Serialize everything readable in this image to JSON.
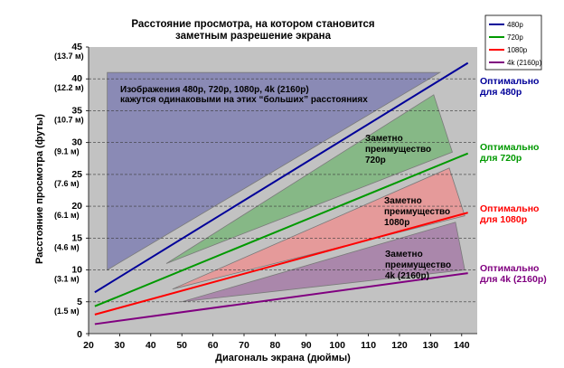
{
  "chart_data": {
    "type": "line",
    "title": [
      "Расстояние просмотра, на котором становится",
      "заметным разрешение экрана"
    ],
    "xlabel": "Диагональ экрана (дюймы)",
    "ylabel": "Расстояние просмотра (футы)",
    "xlim": [
      20,
      145
    ],
    "ylim": [
      0,
      45
    ],
    "xticks": [
      20,
      30,
      40,
      50,
      60,
      70,
      80,
      90,
      100,
      110,
      120,
      130,
      140
    ],
    "yticks": [
      {
        "v": 0,
        "ft": "0",
        "m": ""
      },
      {
        "v": 5,
        "ft": "5",
        "m": "(1.5 м)"
      },
      {
        "v": 10,
        "ft": "10",
        "m": "(3.1 м)"
      },
      {
        "v": 15,
        "ft": "15",
        "m": "(4.6 м)"
      },
      {
        "v": 20,
        "ft": "20",
        "m": "(6.1 м)"
      },
      {
        "v": 25,
        "ft": "25",
        "m": "(7.6 м)"
      },
      {
        "v": 30,
        "ft": "30",
        "m": "(9.1 м)"
      },
      {
        "v": 35,
        "ft": "35",
        "m": "(10.7 м)"
      },
      {
        "v": 40,
        "ft": "40",
        "m": "(12.2 м)"
      },
      {
        "v": 45,
        "ft": "45",
        "m": "(13.7 м)"
      }
    ],
    "grid": "horizontal dashed",
    "legend_position": "top-right",
    "series": [
      {
        "name": "480p",
        "color": "#000099",
        "x": [
          22,
          142
        ],
        "y": [
          6.5,
          42.5
        ],
        "label": [
          "Оптимально",
          "для 480p"
        ]
      },
      {
        "name": "720p",
        "color": "#009900",
        "x": [
          22,
          142
        ],
        "y": [
          4.3,
          28.3
        ],
        "label": [
          "Оптимально",
          "для 720p"
        ]
      },
      {
        "name": "1080p",
        "color": "#ff0000",
        "x": [
          22,
          142
        ],
        "y": [
          3.0,
          19.0
        ],
        "label": [
          "Оптимально",
          "для 1080p"
        ]
      },
      {
        "name": "4k (2160p)",
        "color": "#800080",
        "x": [
          22,
          142
        ],
        "y": [
          1.5,
          9.5
        ],
        "label": [
          "Оптимально",
          "для 4k (2160p)"
        ]
      }
    ],
    "regions": [
      {
        "color": "#8a8ab5",
        "points": [
          [
            26,
            41
          ],
          [
            133,
            41
          ],
          [
            26,
            10
          ]
        ],
        "text": [
          "Изображения 480p, 720p, 1080p, 4k (2160p)",
          "кажутся одинаковыми на этих “больших” расстояниях"
        ]
      },
      {
        "color": "#86b886",
        "points": [
          [
            45,
            11
          ],
          [
            131,
            37.5
          ],
          [
            137,
            28.5
          ]
        ],
        "text": [
          "Заметно",
          "преимущество",
          "720p"
        ]
      },
      {
        "color": "#e59a9a",
        "points": [
          [
            47,
            7
          ],
          [
            136,
            26
          ],
          [
            141,
            18.5
          ]
        ],
        "text": [
          "Заметно",
          "преимущество",
          "1080p"
        ]
      },
      {
        "color": "#aa87ab",
        "points": [
          [
            50,
            5
          ],
          [
            138,
            17.5
          ],
          [
            141,
            10
          ]
        ],
        "text": [
          "Заметно",
          "преимущество",
          "4k (2160p)"
        ]
      }
    ]
  }
}
